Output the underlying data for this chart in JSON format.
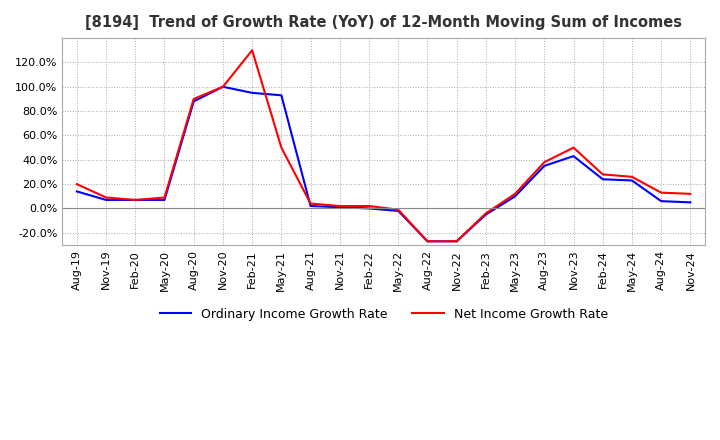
{
  "title": "[8194]  Trend of Growth Rate (YoY) of 12-Month Moving Sum of Incomes",
  "xlabel": "",
  "ylabel": "",
  "ylim": [
    -0.3,
    1.4
  ],
  "yticks": [
    -0.2,
    0.0,
    0.2,
    0.4,
    0.6,
    0.8,
    1.0,
    1.2
  ],
  "legend_labels": [
    "Ordinary Income Growth Rate",
    "Net Income Growth Rate"
  ],
  "legend_colors": [
    "#0000FF",
    "#FF0000"
  ],
  "x_labels": [
    "Aug-19",
    "Nov-19",
    "Feb-20",
    "May-20",
    "Aug-20",
    "Nov-20",
    "Feb-21",
    "May-21",
    "Aug-21",
    "Nov-21",
    "Feb-22",
    "May-22",
    "Aug-22",
    "Nov-22",
    "Feb-23",
    "May-23",
    "Aug-23",
    "Nov-23",
    "Feb-24",
    "May-24",
    "Aug-24",
    "Nov-24"
  ],
  "ordinary_income": [
    0.14,
    0.07,
    0.07,
    0.07,
    0.88,
    1.0,
    0.95,
    0.93,
    0.02,
    0.01,
    0.0,
    -0.02,
    -0.27,
    -0.27,
    -0.05,
    0.1,
    0.35,
    0.43,
    0.24,
    0.23,
    0.06,
    0.05
  ],
  "net_income": [
    0.2,
    0.09,
    0.07,
    0.09,
    0.9,
    1.0,
    1.3,
    0.5,
    0.04,
    0.02,
    0.02,
    -0.01,
    -0.27,
    -0.27,
    -0.04,
    0.12,
    0.38,
    0.5,
    0.28,
    0.26,
    0.13,
    0.12
  ],
  "background_color": "#FFFFFF",
  "plot_bg_color": "#FFFFFF",
  "grid_color": "#AAAAAA",
  "line_width": 1.5
}
